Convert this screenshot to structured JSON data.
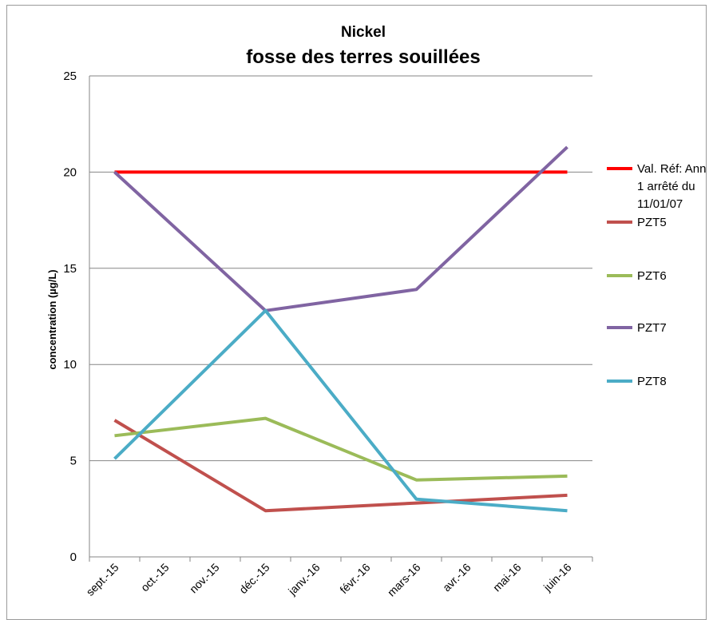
{
  "chart_data": {
    "type": "line",
    "title": "Nickel",
    "subtitle": "fosse des terres souillées",
    "ylabel": "concentration (µg/L)",
    "xlabel": "",
    "ylim": [
      0,
      25
    ],
    "y_ticks": [
      0,
      5,
      10,
      15,
      20,
      25
    ],
    "grid": "horizontal",
    "legend_position": "right",
    "categories": [
      "sept.-15",
      "oct.-15",
      "nov.-15",
      "déc.-15",
      "janv.-16",
      "févr.-16",
      "mars-16",
      "avr.-16",
      "mai-16",
      "juin-16"
    ],
    "series": [
      {
        "name": "Val. Réf: Ann 1 arrêté du 11/01/07",
        "legend_lines": [
          "Val. Réf: Ann",
          "1 arrêté du",
          "11/01/07"
        ],
        "color": "#ff0000",
        "points": [
          [
            "sept.-15",
            20
          ],
          [
            "juin-16",
            20
          ]
        ]
      },
      {
        "name": "PZT5",
        "legend_lines": [
          "PZT5"
        ],
        "color": "#c0504d",
        "points": [
          [
            "sept.-15",
            7.1
          ],
          [
            "déc.-15",
            2.4
          ],
          [
            "mars-16",
            2.8
          ],
          [
            "juin-16",
            3.2
          ]
        ]
      },
      {
        "name": "PZT6",
        "legend_lines": [
          "PZT6"
        ],
        "color": "#9bbb59",
        "points": [
          [
            "sept.-15",
            6.3
          ],
          [
            "déc.-15",
            7.2
          ],
          [
            "mars-16",
            4.0
          ],
          [
            "juin-16",
            4.2
          ]
        ]
      },
      {
        "name": "PZT7",
        "legend_lines": [
          "PZT7"
        ],
        "color": "#8064a2",
        "points": [
          [
            "sept.-15",
            20.0
          ],
          [
            "déc.-15",
            12.8
          ],
          [
            "mars-16",
            13.9
          ],
          [
            "juin-16",
            21.3
          ]
        ]
      },
      {
        "name": "PZT8",
        "legend_lines": [
          "PZT8"
        ],
        "color": "#4bacc6",
        "points": [
          [
            "sept.-15",
            5.1
          ],
          [
            "déc.-15",
            12.8
          ],
          [
            "mars-16",
            3.0
          ],
          [
            "juin-16",
            2.4
          ]
        ]
      }
    ]
  }
}
